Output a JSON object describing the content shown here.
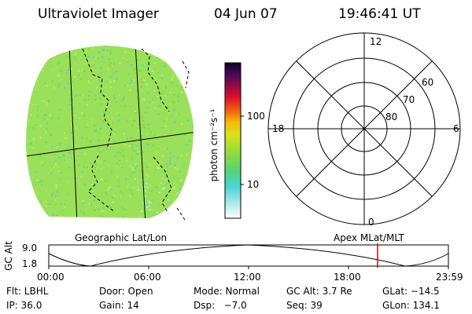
{
  "header": {
    "instrument": "Ultraviolet Imager",
    "date": "04 Jun 07",
    "time": "19:46:41 UT"
  },
  "colorbar": {
    "unit_label": "photon cm⁻²s⁻¹",
    "ticks": [
      "100",
      "10"
    ]
  },
  "polar_plot": {
    "mlt_labels": {
      "top": "12",
      "left": "18",
      "right": "6",
      "bottom": "0"
    },
    "lat_labels": [
      "60",
      "70",
      "80"
    ]
  },
  "map_labels": {
    "left": "Geographic Lat/Lon",
    "right": "Apex MLat/MLT"
  },
  "altitude_plot": {
    "axis_label": "GC Alt",
    "y_ticks": [
      "9.0",
      "1.8"
    ],
    "x_ticks": [
      "00:00",
      "06:00",
      "12:00",
      "18:00",
      "23:59"
    ],
    "current_time_marker": "19:46:41"
  },
  "info": {
    "row1": {
      "filter": "Flt: LBHL",
      "door": "Door: Open",
      "mode": "Mode: Normal",
      "gc_alt": "GC Alt: 3.7 Re",
      "glat": "GLat: −14.5"
    },
    "row2": {
      "ip": "IP: 36.0",
      "gain": "Gain: 14",
      "dsp": "Dsp:   −7.0",
      "seq": "Seq: 39",
      "glon": "GLon: 134.1"
    }
  },
  "colors": {
    "image_base": "#9be05a",
    "colorbar_top": "#1a0033",
    "colorbar_bottom": "#ffffff",
    "time_marker": "#e00000"
  }
}
